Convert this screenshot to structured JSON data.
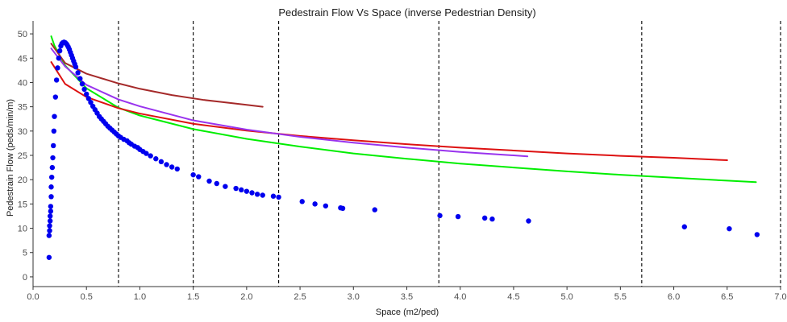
{
  "chart_data": {
    "type": "scatter",
    "title": "Pedestrain Flow Vs Space (inverse Pedestrian Density)",
    "xlabel": "Space (m2/ped)",
    "ylabel": "Pedestrain Flow (peds/min/m)",
    "xlim": [
      0,
      7
    ],
    "ylim": [
      -2,
      52
    ],
    "x_ticks": [
      "0.0",
      "0.5",
      "1.0",
      "1.5",
      "2.0",
      "2.5",
      "3.0",
      "3.5",
      "4.0",
      "4.5",
      "5.0",
      "5.5",
      "6.0",
      "6.5",
      "7.0"
    ],
    "y_ticks": [
      "0",
      "5",
      "10",
      "15",
      "20",
      "25",
      "30",
      "35",
      "40",
      "45",
      "50"
    ],
    "grid": false,
    "vertical_reference_lines": [
      0.8,
      1.5,
      2.3,
      3.8,
      5.7,
      7.0
    ],
    "reference_line_style": "dashed",
    "colors": {
      "points": "#0000ee",
      "green_curve": "#00ee00",
      "darkred_curve": "#a52a2a",
      "red_curve": "#dd1111",
      "purple_curve": "#9933ee",
      "reference_lines": "#000000",
      "axis": "#333333"
    },
    "series": [
      {
        "kind": "points",
        "color_key": "points",
        "x": [
          0.15,
          0.15,
          0.155,
          0.155,
          0.16,
          0.16,
          0.165,
          0.165,
          0.17,
          0.17,
          0.175,
          0.18,
          0.185,
          0.19,
          0.195,
          0.2,
          0.21,
          0.22,
          0.23,
          0.24,
          0.25,
          0.26,
          0.27,
          0.28,
          0.29,
          0.3,
          0.31,
          0.32,
          0.33,
          0.34,
          0.35,
          0.36,
          0.37,
          0.38,
          0.39,
          0.4,
          0.42,
          0.44,
          0.46,
          0.48,
          0.5,
          0.52,
          0.54,
          0.56,
          0.58,
          0.6,
          0.62,
          0.64,
          0.66,
          0.68,
          0.7,
          0.72,
          0.74,
          0.76,
          0.78,
          0.8,
          0.82,
          0.85,
          0.88,
          0.9,
          0.92,
          0.95,
          0.98,
          1.0,
          1.03,
          1.06,
          1.1,
          1.15,
          1.2,
          1.25,
          1.3,
          1.35,
          1.5,
          1.55,
          1.65,
          1.72,
          1.8,
          1.9,
          1.95,
          2.0,
          2.05,
          2.1,
          2.15,
          2.25,
          2.3,
          2.52,
          2.64,
          2.74,
          2.88,
          2.9,
          3.2,
          3.81,
          3.98,
          4.23,
          4.3,
          4.64,
          6.1,
          6.52,
          6.78
        ],
        "y": [
          4.0,
          8.5,
          9.5,
          10.5,
          11.5,
          12.5,
          13.5,
          14.5,
          16.5,
          18.5,
          20.5,
          22.5,
          24.5,
          27.0,
          30.0,
          33.0,
          37.0,
          40.5,
          43.0,
          45.0,
          46.5,
          47.5,
          48.0,
          48.2,
          48.3,
          48.2,
          48.0,
          47.7,
          47.3,
          46.8,
          46.2,
          45.6,
          45.0,
          44.4,
          43.8,
          43.2,
          42.0,
          40.8,
          39.7,
          38.6,
          37.6,
          36.7,
          35.9,
          35.1,
          34.4,
          33.7,
          33.0,
          32.5,
          32.0,
          31.5,
          31.0,
          30.6,
          30.2,
          29.8,
          29.4,
          29.0,
          28.7,
          28.3,
          28.0,
          27.6,
          27.3,
          26.9,
          26.6,
          26.2,
          25.8,
          25.4,
          24.9,
          24.3,
          23.7,
          23.1,
          22.6,
          22.2,
          21.0,
          20.6,
          19.7,
          19.2,
          18.6,
          18.2,
          17.9,
          17.6,
          17.3,
          17.0,
          16.8,
          16.6,
          16.4,
          15.5,
          15.0,
          14.6,
          14.2,
          14.1,
          13.8,
          12.6,
          12.4,
          12.1,
          11.9,
          11.5,
          10.3,
          9.9,
          8.7
        ]
      },
      {
        "kind": "curve",
        "color_key": "green_curve",
        "x": [
          0.17,
          0.2,
          0.3,
          0.5,
          0.8,
          1.0,
          1.5,
          2.0,
          2.5,
          3.0,
          3.5,
          4.0,
          4.5,
          5.0,
          5.5,
          6.0,
          6.5,
          6.77
        ],
        "y": [
          49.5,
          47.6,
          43.5,
          38.8,
          34.8,
          33.2,
          30.4,
          28.4,
          26.8,
          25.4,
          24.3,
          23.3,
          22.5,
          21.7,
          21.0,
          20.4,
          19.8,
          19.5
        ]
      },
      {
        "kind": "curve",
        "color_key": "darkred_curve",
        "x": [
          0.17,
          0.3,
          0.5,
          0.8,
          1.0,
          1.3,
          1.6,
          2.0,
          2.15
        ],
        "y": [
          48.0,
          44.0,
          41.8,
          39.8,
          38.7,
          37.4,
          36.4,
          35.4,
          35.0
        ]
      },
      {
        "kind": "curve",
        "color_key": "red_curve",
        "x": [
          0.17,
          0.3,
          0.5,
          0.8,
          1.0,
          1.5,
          2.0,
          2.5,
          3.0,
          3.5,
          4.0,
          4.5,
          5.0,
          5.5,
          6.0,
          6.5
        ],
        "y": [
          44.2,
          39.7,
          37.0,
          34.7,
          33.6,
          31.5,
          30.1,
          29.0,
          28.1,
          27.3,
          26.6,
          26.0,
          25.4,
          24.9,
          24.5,
          24.0
        ]
      },
      {
        "kind": "curve",
        "color_key": "purple_curve",
        "x": [
          0.17,
          0.3,
          0.5,
          0.8,
          1.0,
          1.5,
          2.0,
          2.5,
          3.0,
          3.5,
          4.0,
          4.5,
          4.63
        ],
        "y": [
          47.0,
          43.3,
          39.5,
          36.5,
          35.1,
          32.2,
          30.3,
          28.8,
          27.6,
          26.6,
          25.7,
          25.0,
          24.8
        ]
      }
    ]
  }
}
